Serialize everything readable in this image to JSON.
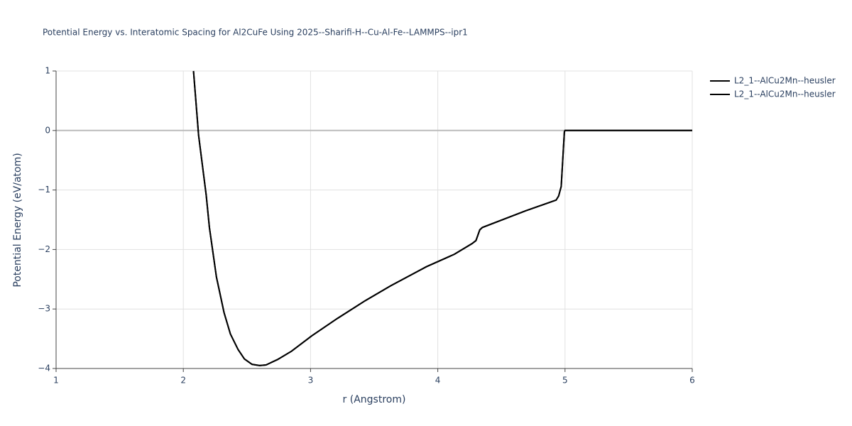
{
  "chart_data": {
    "type": "line",
    "title": "Potential Energy vs. Interatomic Spacing for Al2CuFe Using 2025--Sharifi-H--Cu-Al-Fe--LAMMPS--ipr1",
    "x_label": "r (Angstrom)",
    "y_label": "Potential Energy (eV/atom)",
    "x": [
      2.08,
      2.12,
      2.18,
      2.205,
      2.26,
      2.32,
      2.37,
      2.43,
      2.48,
      2.54,
      2.6,
      2.65,
      2.74,
      2.85,
      3.01,
      3.21,
      3.43,
      3.63,
      3.91,
      4.13,
      4.27,
      4.3,
      4.33,
      4.35,
      4.69,
      4.93,
      4.95,
      4.97,
      4.995,
      5.0,
      6.0
    ],
    "series": [
      {
        "name": "L2_1--AlCu2Mn--heusler",
        "color": "#000000",
        "values": [
          1,
          -0.08,
          -1.09,
          -1.63,
          -2.46,
          -3.06,
          -3.42,
          -3.68,
          -3.84,
          -3.93,
          -3.95,
          -3.94,
          -3.85,
          -3.71,
          -3.45,
          -3.16,
          -2.86,
          -2.61,
          -2.29,
          -2.08,
          -1.9,
          -1.85,
          -1.67,
          -1.63,
          -1.35,
          -1.17,
          -1.1,
          -0.94,
          -0.02,
          0,
          0
        ]
      },
      {
        "name": "L2_1--AlCu2Mn--heusler",
        "color": "#000000",
        "values": [
          1,
          -0.08,
          -1.09,
          -1.63,
          -2.46,
          -3.06,
          -3.42,
          -3.68,
          -3.84,
          -3.93,
          -3.95,
          -3.94,
          -3.85,
          -3.71,
          -3.45,
          -3.16,
          -2.86,
          -2.61,
          -2.29,
          -2.08,
          -1.9,
          -1.85,
          -1.67,
          -1.63,
          -1.35,
          -1.17,
          -1.1,
          -0.94,
          -0.02,
          0,
          0
        ]
      }
    ],
    "xlim": [
      1,
      6
    ],
    "xticks": [
      1,
      2,
      3,
      4,
      5,
      6
    ],
    "ylim": [
      -4,
      1
    ],
    "yticks": [
      {
        "value": -4,
        "label": "−4"
      },
      {
        "value": -3,
        "label": "−3"
      },
      {
        "value": -2,
        "label": "−2"
      },
      {
        "value": -1,
        "label": "−1"
      },
      0,
      1
    ],
    "grid": true,
    "legend": "right"
  }
}
